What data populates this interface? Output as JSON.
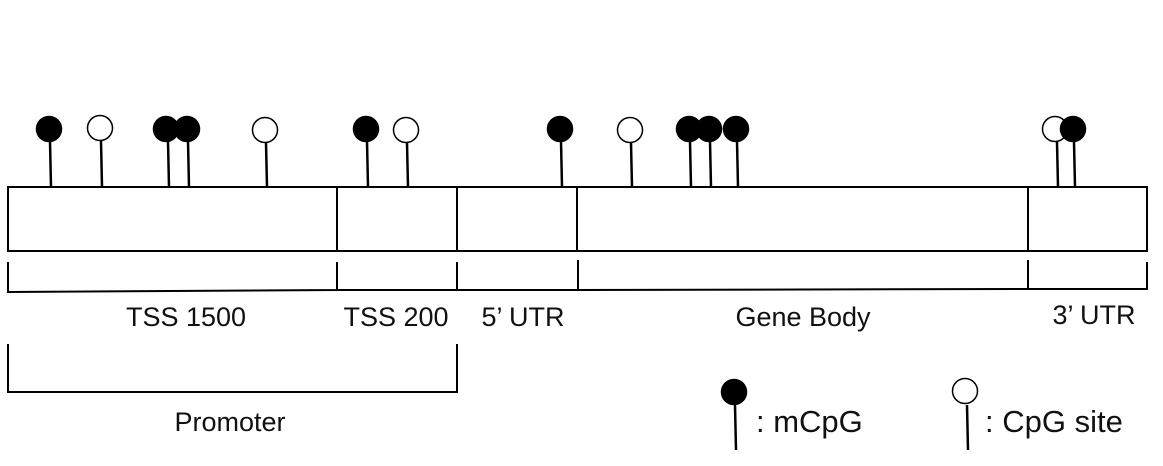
{
  "diagram": {
    "regions": [
      {
        "id": "tss1500",
        "label": "TSS 1500"
      },
      {
        "id": "tss200",
        "label": "TSS 200"
      },
      {
        "id": "utr5",
        "label": "5’ UTR"
      },
      {
        "id": "gene_body",
        "label": "Gene Body"
      },
      {
        "id": "utr3",
        "label": "3’ UTR"
      }
    ],
    "group": {
      "label": "Promoter",
      "spans": [
        "tss1500",
        "tss200"
      ]
    },
    "legend": {
      "methylated": {
        "label": ": mCpG",
        "fill": "#000000"
      },
      "unmethylated": {
        "label": ": CpG site",
        "fill": "#ffffff"
      }
    },
    "colors": {
      "line": "#000000",
      "background": "#ffffff"
    }
  }
}
